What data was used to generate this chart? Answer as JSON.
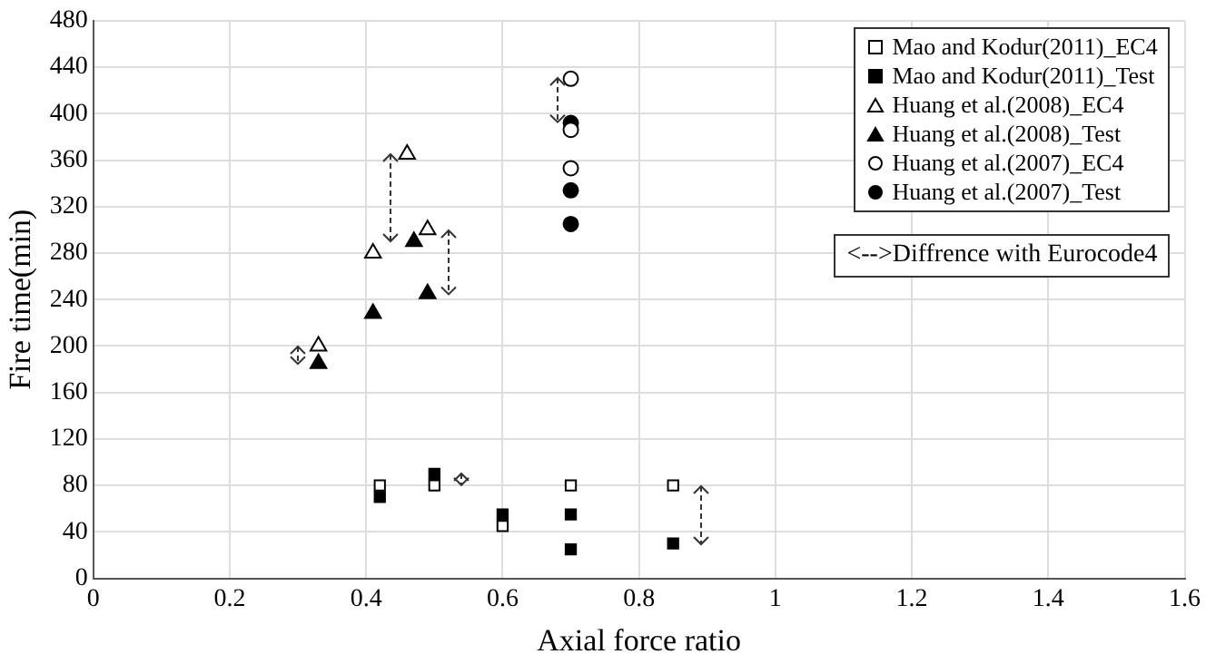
{
  "chart_data": {
    "type": "scatter",
    "xlabel": "Axial force ratio",
    "ylabel": "Fire time(min)",
    "xlim": [
      0,
      1.6
    ],
    "xticks": [
      0,
      0.2,
      0.4,
      0.6,
      0.8,
      1,
      1.2,
      1.4,
      1.6
    ],
    "ylim": [
      0,
      480
    ],
    "yticks": [
      0,
      40,
      80,
      120,
      160,
      200,
      240,
      280,
      320,
      360,
      400,
      440,
      480
    ],
    "grid": true,
    "legend": "top right",
    "annotations": [
      "<-->Diffrence with Eurocode4"
    ],
    "series": [
      {
        "name": "Mao and Kodur(2011)_EC4",
        "color": "#ffffff",
        "marker": "square",
        "x": [
          0.42,
          0.5,
          0.6,
          0.7,
          0.85
        ],
        "values": [
          80,
          80,
          45,
          80,
          80
        ]
      },
      {
        "name": "Mao and Kodur(2011)_Test",
        "color": "#000000",
        "marker": "square",
        "x": [
          0.42,
          0.5,
          0.6,
          0.7,
          0.7,
          0.85
        ],
        "values": [
          70,
          90,
          55,
          55,
          25,
          30
        ]
      },
      {
        "name": "Huang et al.(2008)_EC4",
        "color": "#ffffff",
        "marker": "triangle",
        "x": [
          0.33,
          0.41,
          0.46,
          0.49
        ],
        "values": [
          200,
          280,
          365,
          300
        ]
      },
      {
        "name": "Huang et al.(2008)_Test",
        "color": "#000000",
        "marker": "triangle",
        "x": [
          0.33,
          0.41,
          0.47,
          0.49
        ],
        "values": [
          185,
          228,
          290,
          245
        ]
      },
      {
        "name": "Huang et al.(2007)_EC4",
        "color": "#ffffff",
        "marker": "circle",
        "x": [
          0.7,
          0.7,
          0.7
        ],
        "values": [
          430,
          386,
          353
        ]
      },
      {
        "name": "Huang et al.(2007)_Test",
        "color": "#000000",
        "marker": "circle",
        "x": [
          0.7,
          0.7,
          0.7
        ],
        "values": [
          392,
          334,
          305
        ]
      }
    ]
  }
}
